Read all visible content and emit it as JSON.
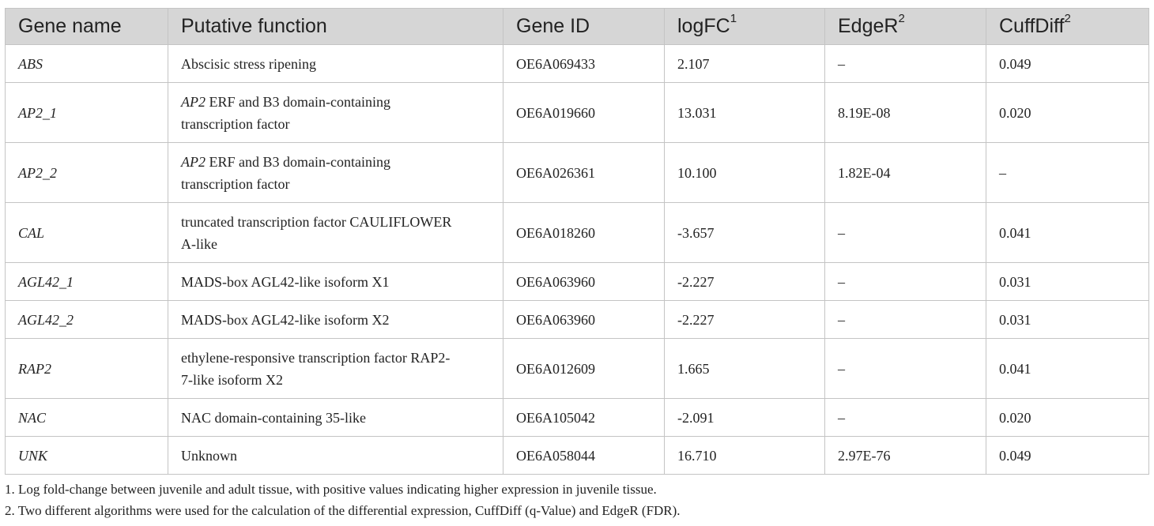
{
  "table": {
    "headers": [
      {
        "text": "Gene name",
        "sup": ""
      },
      {
        "text": "Putative function",
        "sup": ""
      },
      {
        "text": "Gene ID",
        "sup": ""
      },
      {
        "text": "logFC",
        "sup": "1"
      },
      {
        "text": "EdgeR",
        "sup": "2"
      },
      {
        "text": "CuffDiff",
        "sup": "2"
      }
    ],
    "rows": [
      {
        "gene": "ABS",
        "fn_italic": "",
        "fn_rest": "Abscisic stress ripening",
        "fn_line2": "",
        "id": "OE6A069433",
        "logfc": "2.107",
        "edger": "–",
        "cuffdiff": "0.049",
        "tall": false
      },
      {
        "gene": "AP2_1",
        "fn_italic": "AP2",
        "fn_rest": " ERF and B3 domain-containing",
        "fn_line2": "transcription factor",
        "id": "OE6A019660",
        "logfc": "13.031",
        "edger": "8.19E-08",
        "cuffdiff": "0.020",
        "tall": true
      },
      {
        "gene": "AP2_2",
        "fn_italic": "AP2",
        "fn_rest": " ERF and B3 domain-containing",
        "fn_line2": "transcription factor",
        "id": "OE6A026361",
        "logfc": "10.100",
        "edger": "1.82E-04",
        "cuffdiff": "–",
        "tall": true
      },
      {
        "gene": "CAL",
        "fn_italic": "",
        "fn_rest": "truncated transcription factor CAULIFLOWER",
        "fn_line2": "A-like",
        "id": "OE6A018260",
        "logfc": "-3.657",
        "edger": "–",
        "cuffdiff": "0.041",
        "tall": true
      },
      {
        "gene": "AGL42_1",
        "fn_italic": "",
        "fn_rest": "MADS-box AGL42-like isoform X1",
        "fn_line2": "",
        "id": "OE6A063960",
        "logfc": "-2.227",
        "edger": "–",
        "cuffdiff": "0.031",
        "tall": false
      },
      {
        "gene": "AGL42_2",
        "fn_italic": "",
        "fn_rest": "MADS-box AGL42-like isoform X2",
        "fn_line2": "",
        "id": "OE6A063960",
        "logfc": "-2.227",
        "edger": "–",
        "cuffdiff": "0.031",
        "tall": false
      },
      {
        "gene": "RAP2",
        "fn_italic": "",
        "fn_rest": "ethylene-responsive transcription factor RAP2-",
        "fn_line2": "7-like isoform X2",
        "id": "OE6A012609",
        "logfc": "1.665",
        "edger": "–",
        "cuffdiff": "0.041",
        "tall": true
      },
      {
        "gene": "NAC",
        "fn_italic": "",
        "fn_rest": "NAC domain-containing 35-like",
        "fn_line2": "",
        "id": "OE6A105042",
        "logfc": "-2.091",
        "edger": "–",
        "cuffdiff": "0.020",
        "tall": false
      },
      {
        "gene": "UNK",
        "fn_italic": "",
        "fn_rest": "Unknown",
        "fn_line2": "",
        "id": "OE6A058044",
        "logfc": "16.710",
        "edger": "2.97E-76",
        "cuffdiff": "0.049",
        "tall": false
      }
    ]
  },
  "footnotes": [
    "1. Log fold-change between juvenile and adult tissue, with positive values indicating higher expression in juvenile tissue.",
    "2. Two different algorithms were used for the calculation of the differential expression, CuffDiff (q-Value) and EdgeR (FDR)."
  ]
}
